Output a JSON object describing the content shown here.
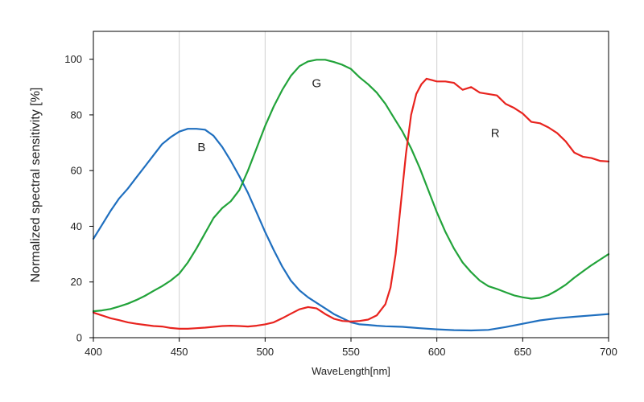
{
  "chart_data": {
    "type": "line",
    "xlabel": "WaveLength[nm]",
    "ylabel": "Normalized spectral sensitivity [%]",
    "xlim": [
      400,
      700
    ],
    "ylim": [
      0,
      110
    ],
    "xticks": [
      400,
      450,
      500,
      550,
      600,
      650,
      700
    ],
    "yticks": [
      0,
      20,
      40,
      60,
      80,
      100
    ],
    "grid": "vertical",
    "series": [
      {
        "name": "B",
        "color": "#1f6fbf",
        "label_at": [
          463,
          67
        ],
        "x": [
          400,
          405,
          410,
          415,
          420,
          425,
          430,
          435,
          440,
          445,
          450,
          455,
          460,
          465,
          470,
          475,
          480,
          485,
          490,
          495,
          500,
          505,
          510,
          515,
          520,
          525,
          530,
          535,
          540,
          545,
          550,
          555,
          560,
          565,
          570,
          575,
          580,
          590,
          600,
          610,
          620,
          630,
          640,
          650,
          660,
          670,
          680,
          690,
          700
        ],
        "y": [
          35.5,
          40.5,
          45.5,
          50,
          53.5,
          57.5,
          61.5,
          65.5,
          69.5,
          72,
          74,
          75,
          75,
          74.7,
          72.5,
          68.5,
          63.5,
          58,
          52,
          45,
          38,
          31.5,
          25.5,
          20.5,
          17,
          14.5,
          12.5,
          10.5,
          8.5,
          7,
          5.5,
          4.8,
          4.6,
          4.3,
          4.1,
          4.0,
          3.9,
          3.4,
          3.0,
          2.7,
          2.6,
          2.8,
          3.8,
          5.0,
          6.2,
          7.0,
          7.5,
          8.0,
          8.5
        ]
      },
      {
        "name": "G",
        "color": "#22a33a",
        "label_at": [
          530,
          90
        ],
        "x": [
          400,
          405,
          410,
          415,
          420,
          425,
          430,
          435,
          440,
          445,
          450,
          455,
          460,
          465,
          470,
          475,
          480,
          485,
          490,
          495,
          500,
          505,
          510,
          515,
          520,
          525,
          530,
          535,
          540,
          545,
          550,
          555,
          560,
          565,
          570,
          575,
          580,
          585,
          590,
          595,
          600,
          605,
          610,
          615,
          620,
          625,
          630,
          635,
          640,
          645,
          650,
          655,
          660,
          665,
          670,
          675,
          680,
          685,
          690,
          695,
          700
        ],
        "y": [
          9.5,
          9.8,
          10.3,
          11.2,
          12.2,
          13.5,
          15.0,
          16.8,
          18.5,
          20.5,
          23.0,
          27.0,
          32.0,
          37.5,
          43.0,
          46.5,
          49.0,
          53.0,
          60.0,
          68.0,
          76.0,
          83.0,
          89.0,
          94.0,
          97.5,
          99.2,
          99.8,
          99.8,
          99.0,
          98.0,
          96.5,
          93.5,
          91.0,
          88.0,
          84.0,
          79.0,
          74.0,
          68.0,
          61.0,
          53.0,
          45.0,
          38.0,
          32.0,
          27.0,
          23.5,
          20.5,
          18.5,
          17.5,
          16.3,
          15.2,
          14.5,
          14.0,
          14.3,
          15.3,
          17.0,
          19.0,
          21.5,
          23.8,
          26.0,
          28.0,
          30.0
        ]
      },
      {
        "name": "R",
        "color": "#e8231e",
        "label_at": [
          634,
          72
        ],
        "x": [
          400,
          405,
          410,
          415,
          420,
          425,
          430,
          435,
          440,
          445,
          450,
          455,
          460,
          465,
          470,
          475,
          480,
          485,
          490,
          495,
          500,
          505,
          510,
          515,
          520,
          525,
          530,
          535,
          540,
          545,
          550,
          555,
          560,
          565,
          570,
          573,
          576,
          579,
          582,
          585,
          588,
          591,
          594,
          597,
          600,
          605,
          610,
          615,
          620,
          625,
          630,
          635,
          640,
          645,
          650,
          655,
          660,
          665,
          670,
          675,
          680,
          685,
          690,
          695,
          700
        ],
        "y": [
          9.0,
          8.0,
          7.0,
          6.3,
          5.5,
          5.0,
          4.6,
          4.2,
          4.0,
          3.5,
          3.2,
          3.2,
          3.4,
          3.6,
          3.9,
          4.2,
          4.3,
          4.2,
          4.0,
          4.3,
          4.8,
          5.5,
          7.0,
          8.6,
          10.2,
          11.0,
          10.5,
          8.5,
          6.8,
          6.0,
          5.8,
          6.0,
          6.5,
          8.0,
          12.0,
          18.0,
          30.0,
          48.0,
          66.0,
          80.0,
          87.5,
          91.0,
          93.0,
          92.5,
          92.0,
          92.0,
          91.5,
          89.0,
          90.0,
          88.0,
          87.5,
          87.0,
          84.0,
          82.5,
          80.5,
          77.5,
          77.0,
          75.5,
          73.5,
          70.5,
          66.5,
          65.0,
          64.5,
          63.5,
          63.3
        ]
      }
    ]
  }
}
